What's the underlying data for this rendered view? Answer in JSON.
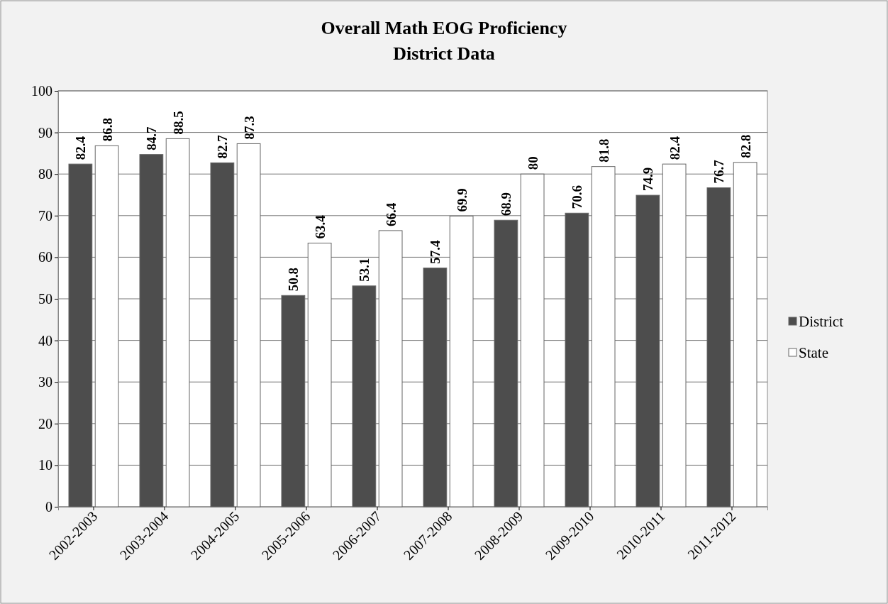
{
  "chart_data": {
    "type": "bar",
    "title": "Overall Math EOG Proficiency",
    "subtitle": "District Data",
    "categories": [
      "2002-2003",
      "2003-2004",
      "2004-2005",
      "2005-2006",
      "2006-2007",
      "2007-2008",
      "2008-2009",
      "2009-2010",
      "2010-2011",
      "2011-2012"
    ],
    "series": [
      {
        "name": "District",
        "color": "#4d4d4d",
        "values": [
          82.4,
          84.7,
          82.7,
          50.8,
          53.1,
          57.4,
          68.9,
          70.6,
          74.9,
          76.7
        ]
      },
      {
        "name": "State",
        "color": "#ffffff",
        "values": [
          86.8,
          88.5,
          87.3,
          63.4,
          66.4,
          69.9,
          80,
          81.8,
          82.4,
          82.8
        ]
      }
    ],
    "ylim": [
      0,
      100
    ],
    "yticks": [
      0,
      10,
      20,
      30,
      40,
      50,
      60,
      70,
      80,
      90,
      100
    ],
    "grid": "y",
    "legend": "right",
    "data_labels": true
  }
}
